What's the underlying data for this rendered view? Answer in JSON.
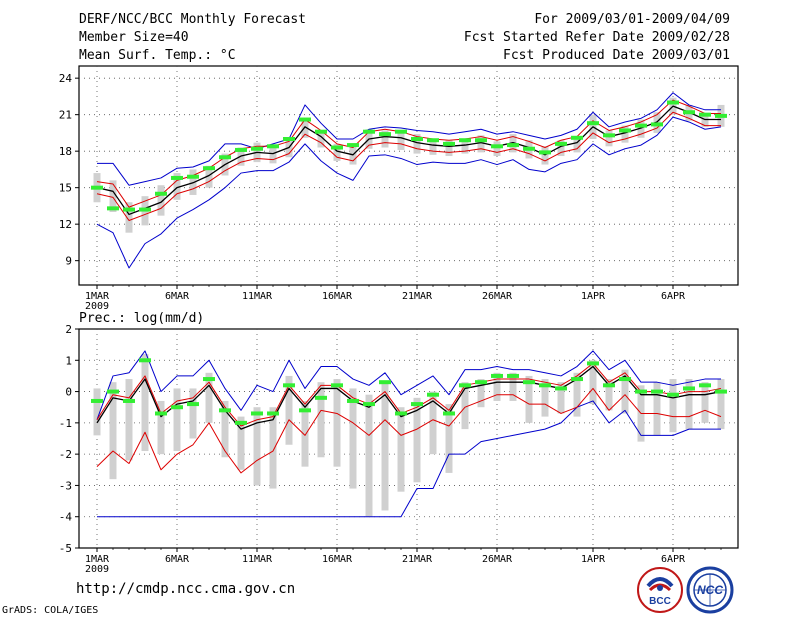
{
  "header": {
    "title": "DERF/NCC/BCC Monthly Forecast",
    "member_size": "Member Size=40",
    "variable": "Mean Surf. Temp.: °C",
    "period": "For 2009/03/01-2009/04/09",
    "started": "Fcst Started Refer Date 2009/02/28",
    "produced": "Fcst Produced Date 2009/03/01"
  },
  "footer": {
    "url": "http://cmdp.ncc.cma.gov.cn",
    "grads": "GrADS: COLA/IGES",
    "logo_left_text": "BCC",
    "logo_right_text": "NCC"
  },
  "colors": {
    "ensemble_mean": "#000000",
    "member_range": "#0000cc",
    "spread_band": "#dd0000",
    "climatology": "#33ee33",
    "spread_bar": "#d0d0d0"
  },
  "chart_data": [
    {
      "type": "line",
      "title": "Mean Surf. Temp.: °C",
      "x": [
        1,
        2,
        3,
        4,
        5,
        6,
        7,
        8,
        9,
        10,
        11,
        12,
        13,
        14,
        15,
        16,
        17,
        18,
        19,
        20,
        21,
        22,
        23,
        24,
        25,
        26,
        27,
        28,
        29,
        30,
        31,
        32,
        33,
        34,
        35,
        36,
        37,
        38,
        39,
        40
      ],
      "x_ticks": [
        "1MAR",
        "6MAR",
        "11MAR",
        "16MAR",
        "21MAR",
        "26MAR",
        "1APR",
        "6APR"
      ],
      "x_tick_days": [
        1,
        6,
        11,
        16,
        21,
        26,
        32,
        37
      ],
      "x_sublabel": "2009",
      "ylim": [
        7,
        25
      ],
      "y_ticks": [
        9,
        12,
        15,
        18,
        21,
        24
      ],
      "grid": true,
      "series": [
        {
          "name": "ensemble_mean",
          "values": [
            15.0,
            14.7,
            12.8,
            13.3,
            13.8,
            15.0,
            15.4,
            16.0,
            16.9,
            17.6,
            17.9,
            17.8,
            18.3,
            20.0,
            19.2,
            18.0,
            17.7,
            19.0,
            19.2,
            19.1,
            18.7,
            18.5,
            18.4,
            18.5,
            18.7,
            18.4,
            18.7,
            18.3,
            17.7,
            18.4,
            18.7,
            20.0,
            19.2,
            19.5,
            19.9,
            20.4,
            21.7,
            21.2,
            20.6,
            20.6
          ]
        },
        {
          "name": "upper",
          "values": [
            15.5,
            15.3,
            13.4,
            13.9,
            14.4,
            15.6,
            16.0,
            16.6,
            17.5,
            18.2,
            18.4,
            18.4,
            18.8,
            20.6,
            19.7,
            18.6,
            18.3,
            19.6,
            19.8,
            19.6,
            19.2,
            19.0,
            18.9,
            19.0,
            19.2,
            18.9,
            19.2,
            18.8,
            18.3,
            18.9,
            19.2,
            20.5,
            19.7,
            20.0,
            20.4,
            21.0,
            22.2,
            21.7,
            21.1,
            21.1
          ]
        },
        {
          "name": "lower",
          "values": [
            14.5,
            14.2,
            12.3,
            12.8,
            13.3,
            14.5,
            14.9,
            15.5,
            16.4,
            17.1,
            17.4,
            17.3,
            17.8,
            19.4,
            18.7,
            17.5,
            17.2,
            18.5,
            18.7,
            18.6,
            18.2,
            18.0,
            17.9,
            18.0,
            18.2,
            17.9,
            18.2,
            17.8,
            17.2,
            17.9,
            18.2,
            19.5,
            18.7,
            19.0,
            19.4,
            19.9,
            21.2,
            20.7,
            20.1,
            20.1
          ]
        },
        {
          "name": "max",
          "values": [
            17.0,
            17.0,
            15.2,
            15.5,
            15.8,
            16.6,
            16.7,
            17.2,
            18.6,
            18.6,
            18.2,
            18.6,
            19.0,
            21.8,
            20.3,
            19.0,
            19.0,
            19.8,
            20.0,
            19.9,
            19.7,
            19.6,
            19.4,
            19.6,
            19.8,
            19.4,
            19.6,
            19.3,
            19.0,
            19.3,
            19.8,
            21.2,
            20.0,
            20.4,
            20.7,
            21.4,
            22.8,
            21.8,
            21.4,
            21.4
          ]
        },
        {
          "name": "min",
          "values": [
            12.0,
            11.3,
            8.4,
            10.4,
            11.2,
            12.5,
            13.2,
            14.0,
            15.0,
            16.2,
            16.4,
            16.4,
            17.1,
            18.6,
            17.2,
            16.2,
            15.6,
            17.6,
            17.7,
            17.4,
            16.9,
            17.1,
            17.0,
            17.0,
            17.3,
            16.9,
            17.3,
            16.5,
            16.3,
            17.0,
            17.3,
            18.6,
            17.7,
            18.2,
            18.5,
            19.3,
            20.8,
            20.4,
            19.8,
            20.0
          ]
        },
        {
          "name": "climatology",
          "values": [
            15.0,
            13.3,
            13.2,
            13.2,
            14.5,
            15.8,
            15.9,
            16.6,
            17.5,
            18.1,
            18.2,
            18.4,
            19.0,
            20.6,
            19.6,
            18.3,
            18.5,
            19.6,
            19.4,
            19.6,
            19.0,
            18.9,
            18.6,
            18.9,
            18.9,
            18.4,
            18.5,
            18.2,
            17.9,
            18.6,
            19.1,
            20.3,
            19.3,
            19.7,
            20.1,
            20.2,
            22.0,
            21.2,
            21.0,
            20.9
          ]
        },
        {
          "name": "bar_top",
          "values": [
            16.2,
            15.6,
            13.8,
            14.3,
            15.2,
            16.2,
            16.5,
            16.8,
            17.8,
            18.3,
            18.7,
            18.4,
            19.1,
            20.6,
            19.7,
            18.6,
            18.4,
            19.8,
            19.7,
            19.7,
            19.4,
            19.0,
            18.9,
            19.0,
            19.3,
            18.8,
            19.4,
            18.9,
            18.4,
            18.9,
            19.2,
            21.0,
            19.7,
            20.1,
            20.6,
            21.2,
            22.4,
            21.8,
            21.1,
            21.8
          ]
        },
        {
          "name": "bar_bottom",
          "values": [
            13.8,
            13.0,
            11.3,
            11.9,
            12.7,
            14.0,
            14.4,
            15.0,
            16.0,
            16.8,
            17.1,
            17.0,
            17.5,
            19.1,
            18.3,
            17.2,
            16.9,
            18.2,
            18.3,
            18.1,
            17.8,
            17.7,
            17.6,
            17.8,
            17.9,
            17.6,
            17.9,
            17.4,
            16.9,
            17.6,
            17.9,
            19.0,
            18.4,
            18.7,
            19.1,
            19.5,
            21.0,
            20.5,
            20.0,
            20.0
          ]
        }
      ]
    },
    {
      "type": "line",
      "title": "Prec.: log(mm/d)",
      "x": [
        1,
        2,
        3,
        4,
        5,
        6,
        7,
        8,
        9,
        10,
        11,
        12,
        13,
        14,
        15,
        16,
        17,
        18,
        19,
        20,
        21,
        22,
        23,
        24,
        25,
        26,
        27,
        28,
        29,
        30,
        31,
        32,
        33,
        34,
        35,
        36,
        37,
        38,
        39,
        40
      ],
      "x_ticks": [
        "1MAR",
        "6MAR",
        "11MAR",
        "16MAR",
        "21MAR",
        "26MAR",
        "1APR",
        "6APR"
      ],
      "x_tick_days": [
        1,
        6,
        11,
        16,
        21,
        26,
        32,
        37
      ],
      "x_sublabel": "2009",
      "ylim": [
        -5,
        2
      ],
      "y_ticks": [
        -5,
        -4,
        -3,
        -2,
        -1,
        0,
        1,
        2
      ],
      "grid": true,
      "series": [
        {
          "name": "ensemble_mean",
          "values": [
            -1.0,
            -0.2,
            -0.3,
            0.4,
            -0.8,
            -0.4,
            -0.3,
            0.2,
            -0.6,
            -1.2,
            -1.0,
            -0.9,
            0.1,
            -0.5,
            0.1,
            0.1,
            -0.3,
            -0.5,
            -0.1,
            -0.8,
            -0.6,
            -0.3,
            -0.7,
            0.1,
            0.2,
            0.3,
            0.3,
            0.3,
            0.2,
            0.1,
            0.4,
            0.8,
            0.2,
            0.5,
            -0.1,
            -0.1,
            -0.2,
            -0.1,
            -0.1,
            0.0
          ]
        },
        {
          "name": "upper",
          "values": [
            -0.9,
            -0.1,
            -0.2,
            0.5,
            -0.7,
            -0.3,
            -0.2,
            0.3,
            -0.5,
            -1.1,
            -0.9,
            -0.8,
            0.2,
            -0.4,
            0.2,
            0.2,
            -0.2,
            -0.4,
            0.0,
            -0.7,
            -0.5,
            -0.2,
            -0.6,
            0.2,
            0.3,
            0.4,
            0.4,
            0.4,
            0.3,
            0.2,
            0.5,
            0.9,
            0.3,
            0.6,
            0.0,
            0.0,
            -0.1,
            0.0,
            0.0,
            0.1
          ]
        },
        {
          "name": "lower",
          "values": [
            -2.4,
            -1.9,
            -2.3,
            -1.3,
            -2.5,
            -2.0,
            -1.7,
            -1.0,
            -1.9,
            -2.6,
            -2.2,
            -1.9,
            -0.9,
            -1.4,
            -0.6,
            -0.7,
            -1.0,
            -1.4,
            -0.9,
            -1.4,
            -1.2,
            -0.9,
            -1.1,
            -0.5,
            -0.3,
            -0.1,
            -0.1,
            -0.4,
            -0.4,
            -0.7,
            -0.5,
            0.1,
            -0.6,
            -0.1,
            -0.7,
            -0.7,
            -0.8,
            -0.8,
            -0.6,
            -0.8
          ]
        },
        {
          "name": "max",
          "values": [
            -0.9,
            0.5,
            0.6,
            1.3,
            0.0,
            0.5,
            0.5,
            1.0,
            0.1,
            -0.6,
            0.2,
            0.0,
            1.0,
            0.1,
            0.8,
            0.8,
            0.4,
            0.2,
            0.6,
            -0.1,
            0.2,
            0.5,
            -0.1,
            0.7,
            0.7,
            0.8,
            0.7,
            0.7,
            0.6,
            0.5,
            0.8,
            1.3,
            0.7,
            1.0,
            0.3,
            0.3,
            0.2,
            0.3,
            0.4,
            0.4
          ]
        },
        {
          "name": "min",
          "values": [
            -4.0,
            -4.0,
            -4.0,
            -4.0,
            -4.0,
            -4.0,
            -4.0,
            -4.0,
            -4.0,
            -4.0,
            -4.0,
            -4.0,
            -4.0,
            -4.0,
            -4.0,
            -4.0,
            -4.0,
            -4.0,
            -4.0,
            -4.0,
            -3.1,
            -3.1,
            -2.0,
            -2.0,
            -1.6,
            -1.5,
            -1.4,
            -1.3,
            -1.2,
            -1.0,
            -0.5,
            -0.3,
            -1.0,
            -0.6,
            -1.4,
            -1.4,
            -1.4,
            -1.2,
            -1.2,
            -1.2
          ]
        },
        {
          "name": "climatology",
          "values": [
            -0.3,
            0.0,
            -0.3,
            1.0,
            -0.7,
            -0.5,
            -0.4,
            0.4,
            -0.6,
            -1.0,
            -0.7,
            -0.7,
            0.2,
            -0.6,
            -0.2,
            0.2,
            -0.3,
            -0.4,
            0.3,
            -0.7,
            -0.4,
            -0.1,
            -0.7,
            0.2,
            0.3,
            0.5,
            0.5,
            0.3,
            0.2,
            0.1,
            0.4,
            0.9,
            0.2,
            0.4,
            0.0,
            0.0,
            -0.1,
            0.1,
            0.2,
            0.0
          ]
        },
        {
          "name": "bar_top",
          "values": [
            0.1,
            0.3,
            0.4,
            1.2,
            -0.3,
            0.1,
            0.1,
            0.6,
            -0.3,
            -0.8,
            -0.5,
            -0.5,
            0.5,
            -0.3,
            0.3,
            0.4,
            0.1,
            -0.1,
            0.3,
            -0.5,
            -0.2,
            0.0,
            -0.4,
            0.3,
            0.4,
            0.6,
            0.6,
            0.5,
            0.4,
            0.3,
            0.6,
            1.0,
            0.4,
            0.7,
            0.2,
            0.3,
            0.4,
            0.4,
            0.3,
            0.4
          ]
        },
        {
          "name": "bar_bottom",
          "values": [
            -1.4,
            -2.8,
            -2.2,
            -1.9,
            -2.0,
            -1.9,
            -1.5,
            -1.0,
            -2.1,
            -2.5,
            -3.0,
            -3.1,
            -1.7,
            -2.4,
            -2.1,
            -2.4,
            -3.1,
            -4.0,
            -3.8,
            -3.2,
            -2.9,
            -2.0,
            -2.6,
            -1.2,
            -0.5,
            -0.3,
            -0.3,
            -1.0,
            -0.8,
            -0.7,
            -0.8,
            -0.4,
            -0.6,
            -0.7,
            -1.6,
            -1.4,
            -1.3,
            -1.2,
            -1.0,
            -1.2
          ]
        }
      ]
    }
  ]
}
